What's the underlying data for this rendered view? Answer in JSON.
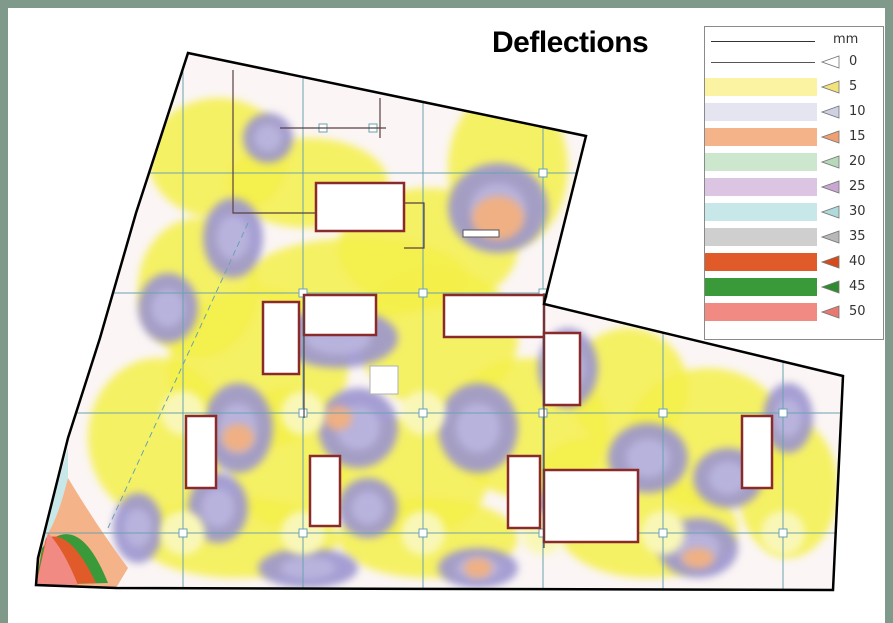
{
  "title": "Deflections",
  "legend": {
    "unit": "mm",
    "items": [
      {
        "label": "0",
        "color": "#ffffff",
        "marker": "#ffffff"
      },
      {
        "label": "5",
        "color": "#fbf2a2",
        "marker": "#f2e27a"
      },
      {
        "label": "10",
        "color": "#e4e5f0",
        "marker": "#ced0e4"
      },
      {
        "label": "15",
        "color": "#f5b389",
        "marker": "#f0a070"
      },
      {
        "label": "20",
        "color": "#cde7cf",
        "marker": "#b6dab9"
      },
      {
        "label": "25",
        "color": "#dcc5e2",
        "marker": "#c8a7d3"
      },
      {
        "label": "30",
        "color": "#c8e7e8",
        "marker": "#aedadb"
      },
      {
        "label": "35",
        "color": "#cfcfcf",
        "marker": "#b8b8b8"
      },
      {
        "label": "40",
        "color": "#e05a2a",
        "marker": "#d64a1c"
      },
      {
        "label": "45",
        "color": "#3a9a3a",
        "marker": "#2f8b2f"
      },
      {
        "label": "50",
        "color": "#f08a82",
        "marker": "#e87870"
      }
    ]
  },
  "contour_colors": {
    "background": "#fbf5f5",
    "yellow": "#f4f04a",
    "pale_yellow": "#f9f7b8",
    "lavender": "#b9b4de",
    "purple": "#9b95cf",
    "orange": "#f2b07e",
    "grid": "#6aa2b0",
    "wall": "#8a2a2a",
    "outline": "#000000"
  }
}
